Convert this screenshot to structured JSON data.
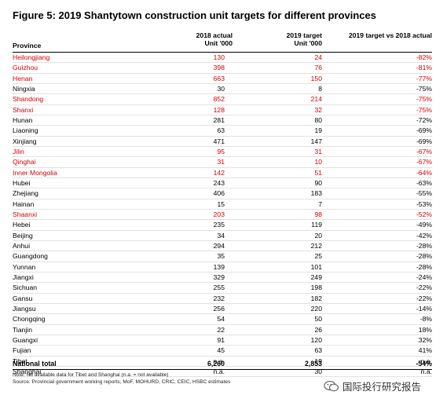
{
  "title": "Figure 5: 2019 Shantytown construction unit targets for different provinces",
  "headers": {
    "province": "Province",
    "actual_line1": "2018 actual",
    "actual_line2": "Unit '000",
    "target_line1": "2019 target",
    "target_line2": "Unit '000",
    "change": "2019 target vs 2018 actual"
  },
  "highlight_color": "#d40000",
  "rows": [
    {
      "province": "Heilongjiang",
      "actual": "130",
      "target": "24",
      "change": "-82%",
      "highlight": true
    },
    {
      "province": "Guizhou",
      "actual": "398",
      "target": "76",
      "change": "-81%",
      "highlight": true
    },
    {
      "province": "Henan",
      "actual": "663",
      "target": "150",
      "change": "-77%",
      "highlight": true
    },
    {
      "province": "Ningxia",
      "actual": "30",
      "target": "8",
      "change": "-75%",
      "highlight": false
    },
    {
      "province": "Shandong",
      "actual": "852",
      "target": "214",
      "change": "-75%",
      "highlight": true
    },
    {
      "province": "Shanxi",
      "actual": "128",
      "target": "32",
      "change": "-75%",
      "highlight": true
    },
    {
      "province": "Hunan",
      "actual": "281",
      "target": "80",
      "change": "-72%",
      "highlight": false
    },
    {
      "province": "Liaoning",
      "actual": "63",
      "target": "19",
      "change": "-69%",
      "highlight": false
    },
    {
      "province": "Xinjiang",
      "actual": "471",
      "target": "147",
      "change": "-69%",
      "highlight": false
    },
    {
      "province": "Jilin",
      "actual": "95",
      "target": "31",
      "change": "-67%",
      "highlight": true
    },
    {
      "province": "Qinghai",
      "actual": "31",
      "target": "10",
      "change": "-67%",
      "highlight": true
    },
    {
      "province": "Inner Mongolia",
      "actual": "142",
      "target": "51",
      "change": "-64%",
      "highlight": true
    },
    {
      "province": "Hubei",
      "actual": "243",
      "target": "90",
      "change": "-63%",
      "highlight": false
    },
    {
      "province": "Zhejiang",
      "actual": "406",
      "target": "183",
      "change": "-55%",
      "highlight": false
    },
    {
      "province": "Hainan",
      "actual": "15",
      "target": "7",
      "change": "-53%",
      "highlight": false
    },
    {
      "province": "Shaanxi",
      "actual": "203",
      "target": "98",
      "change": "-52%",
      "highlight": true
    },
    {
      "province": "Hebei",
      "actual": "235",
      "target": "119",
      "change": "-49%",
      "highlight": false
    },
    {
      "province": "Beijing",
      "actual": "34",
      "target": "20",
      "change": "-42%",
      "highlight": false
    },
    {
      "province": "Anhui",
      "actual": "294",
      "target": "212",
      "change": "-28%",
      "highlight": false
    },
    {
      "province": "Guangdong",
      "actual": "35",
      "target": "25",
      "change": "-28%",
      "highlight": false
    },
    {
      "province": "Yunnan",
      "actual": "139",
      "target": "101",
      "change": "-28%",
      "highlight": false
    },
    {
      "province": "Jiangxi",
      "actual": "329",
      "target": "249",
      "change": "-24%",
      "highlight": false
    },
    {
      "province": "Sichuan",
      "actual": "255",
      "target": "198",
      "change": "-22%",
      "highlight": false
    },
    {
      "province": "Gansu",
      "actual": "232",
      "target": "182",
      "change": "-22%",
      "highlight": false
    },
    {
      "province": "Jiangsu",
      "actual": "256",
      "target": "220",
      "change": "-14%",
      "highlight": false
    },
    {
      "province": "Chongqing",
      "actual": "54",
      "target": "50",
      "change": "-8%",
      "highlight": false
    },
    {
      "province": "Tianjin",
      "actual": "22",
      "target": "26",
      "change": "18%",
      "highlight": false
    },
    {
      "province": "Guangxi",
      "actual": "91",
      "target": "120",
      "change": "32%",
      "highlight": false
    },
    {
      "province": "Fujian",
      "actual": "45",
      "target": "63",
      "change": "41%",
      "highlight": false
    },
    {
      "province": "Tibet",
      "actual": "n.a.",
      "target": "19",
      "change": "n.a.",
      "highlight": false
    },
    {
      "province": "Shanghai",
      "actual": "n.a.",
      "target": "30",
      "change": "n.a.",
      "highlight": false
    }
  ],
  "total": {
    "label": "National total",
    "actual": "6,260",
    "target": "2,853",
    "change": "-54%"
  },
  "note": "Note: No available data for Tibet and Shanghai (n.a. = not available)",
  "source": "Source: Provincial government working reports, MoF, MOHURD, CRIC, CEIC, HSBC estimates",
  "watermark": {
    "icon": "wechat-icon",
    "text": "国际投行研究报告"
  }
}
